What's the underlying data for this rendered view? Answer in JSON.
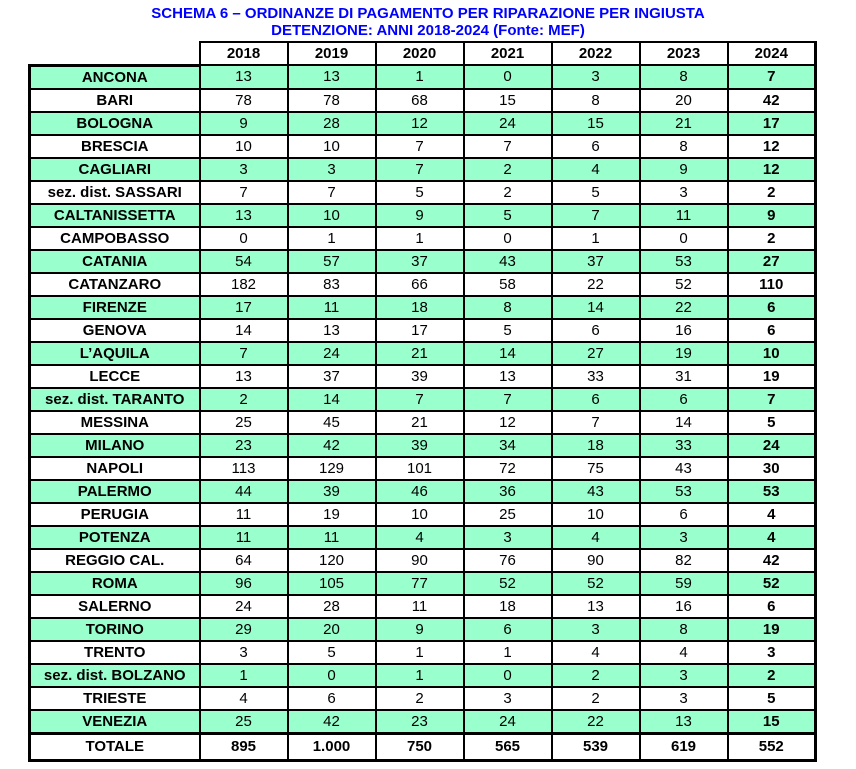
{
  "title": {
    "line1": "SCHEMA 6 – ORDINANZE DI PAGAMENTO PER RIPARAZIONE PER INGIUSTA",
    "line2": "DETENZIONE: ANNI 2018-2024 (Fonte: MEF)"
  },
  "colors": {
    "title_blue": "#0000FF",
    "highlight_green": "#99FFCC",
    "border_black": "#000000",
    "background_white": "#FFFFFF"
  },
  "chart_data": {
    "type": "table",
    "title": "SCHEMA 6 – ORDINANZE DI PAGAMENTO PER RIPARAZIONE PER INGIUSTA DETENZIONE: ANNI 2018-2024 (Fonte: MEF)",
    "columns": [
      "2018",
      "2019",
      "2020",
      "2021",
      "2022",
      "2023",
      "2024"
    ],
    "rows": [
      {
        "label": "ANCONA",
        "highlighted": true,
        "values": [
          "13",
          "13",
          "1",
          "0",
          "3",
          "8",
          "7"
        ]
      },
      {
        "label": "BARI",
        "highlighted": false,
        "values": [
          "78",
          "78",
          "68",
          "15",
          "8",
          "20",
          "42"
        ]
      },
      {
        "label": "BOLOGNA",
        "highlighted": true,
        "values": [
          "9",
          "28",
          "12",
          "24",
          "15",
          "21",
          "17"
        ]
      },
      {
        "label": "BRESCIA",
        "highlighted": false,
        "values": [
          "10",
          "10",
          "7",
          "7",
          "6",
          "8",
          "12"
        ]
      },
      {
        "label": "CAGLIARI",
        "highlighted": true,
        "values": [
          "3",
          "3",
          "7",
          "2",
          "4",
          "9",
          "12"
        ]
      },
      {
        "label": "sez. dist. SASSARI",
        "highlighted": false,
        "values": [
          "7",
          "7",
          "5",
          "2",
          "5",
          "3",
          "2"
        ]
      },
      {
        "label": "CALTANISSETTA",
        "highlighted": true,
        "values": [
          "13",
          "10",
          "9",
          "5",
          "7",
          "11",
          "9"
        ]
      },
      {
        "label": "CAMPOBASSO",
        "highlighted": false,
        "values": [
          "0",
          "1",
          "1",
          "0",
          "1",
          "0",
          "2"
        ]
      },
      {
        "label": "CATANIA",
        "highlighted": true,
        "values": [
          "54",
          "57",
          "37",
          "43",
          "37",
          "53",
          "27"
        ]
      },
      {
        "label": "CATANZARO",
        "highlighted": false,
        "values": [
          "182",
          "83",
          "66",
          "58",
          "22",
          "52",
          "110"
        ]
      },
      {
        "label": "FIRENZE",
        "highlighted": true,
        "values": [
          "17",
          "11",
          "18",
          "8",
          "14",
          "22",
          "6"
        ]
      },
      {
        "label": "GENOVA",
        "highlighted": false,
        "values": [
          "14",
          "13",
          "17",
          "5",
          "6",
          "16",
          "6"
        ]
      },
      {
        "label": "L’AQUILA",
        "highlighted": true,
        "values": [
          "7",
          "24",
          "21",
          "14",
          "27",
          "19",
          "10"
        ]
      },
      {
        "label": "LECCE",
        "highlighted": false,
        "values": [
          "13",
          "37",
          "39",
          "13",
          "33",
          "31",
          "19"
        ]
      },
      {
        "label": "sez. dist. TARANTO",
        "highlighted": true,
        "values": [
          "2",
          "14",
          "7",
          "7",
          "6",
          "6",
          "7"
        ]
      },
      {
        "label": "MESSINA",
        "highlighted": false,
        "values": [
          "25",
          "45",
          "21",
          "12",
          "7",
          "14",
          "5"
        ]
      },
      {
        "label": "MILANO",
        "highlighted": true,
        "values": [
          "23",
          "42",
          "39",
          "34",
          "18",
          "33",
          "24"
        ]
      },
      {
        "label": "NAPOLI",
        "highlighted": false,
        "values": [
          "113",
          "129",
          "101",
          "72",
          "75",
          "43",
          "30"
        ]
      },
      {
        "label": "PALERMO",
        "highlighted": true,
        "values": [
          "44",
          "39",
          "46",
          "36",
          "43",
          "53",
          "53"
        ]
      },
      {
        "label": "PERUGIA",
        "highlighted": false,
        "values": [
          "11",
          "19",
          "10",
          "25",
          "10",
          "6",
          "4"
        ]
      },
      {
        "label": "POTENZA",
        "highlighted": true,
        "values": [
          "11",
          "11",
          "4",
          "3",
          "4",
          "3",
          "4"
        ]
      },
      {
        "label": "REGGIO CAL.",
        "highlighted": false,
        "values": [
          "64",
          "120",
          "90",
          "76",
          "90",
          "82",
          "42"
        ]
      },
      {
        "label": "ROMA",
        "highlighted": true,
        "values": [
          "96",
          "105",
          "77",
          "52",
          "52",
          "59",
          "52"
        ]
      },
      {
        "label": "SALERNO",
        "highlighted": false,
        "values": [
          "24",
          "28",
          "11",
          "18",
          "13",
          "16",
          "6"
        ]
      },
      {
        "label": "TORINO",
        "highlighted": true,
        "values": [
          "29",
          "20",
          "9",
          "6",
          "3",
          "8",
          "19"
        ]
      },
      {
        "label": "TRENTO",
        "highlighted": false,
        "values": [
          "3",
          "5",
          "1",
          "1",
          "4",
          "4",
          "3"
        ]
      },
      {
        "label": "sez. dist. BOLZANO",
        "highlighted": true,
        "values": [
          "1",
          "0",
          "1",
          "0",
          "2",
          "3",
          "2"
        ]
      },
      {
        "label": "TRIESTE",
        "highlighted": false,
        "values": [
          "4",
          "6",
          "2",
          "3",
          "2",
          "3",
          "5"
        ]
      },
      {
        "label": "VENEZIA",
        "highlighted": true,
        "values": [
          "25",
          "42",
          "23",
          "24",
          "22",
          "13",
          "15"
        ]
      }
    ],
    "total_row": {
      "label": "TOTALE",
      "values": [
        "895",
        "1.000",
        "750",
        "565",
        "539",
        "619",
        "552"
      ]
    }
  }
}
